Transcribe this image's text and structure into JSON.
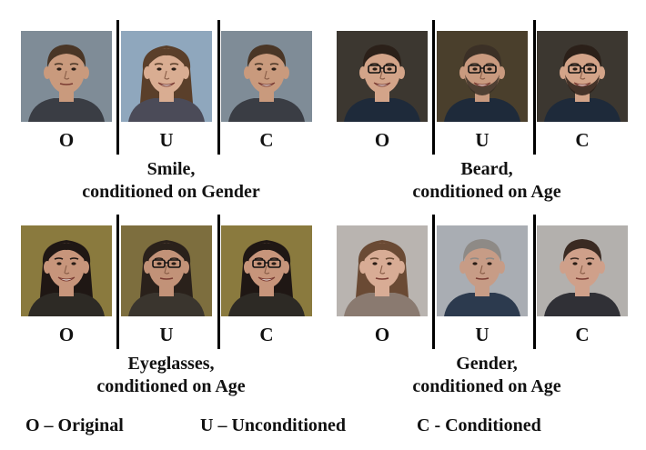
{
  "panels": [
    {
      "caption_line1": "Smile,",
      "caption_line2": "conditioned on Gender",
      "labels": [
        "O",
        "U",
        "C"
      ],
      "photos": [
        {
          "bg": "#7f8c97",
          "skin": "#c99a7d",
          "hair": "#4a3626",
          "shirt": "#3a3d44",
          "long_hair": false,
          "glasses": false,
          "beard": false,
          "smile": false
        },
        {
          "bg": "#8fa7bd",
          "skin": "#d9ad92",
          "hair": "#5a3f2a",
          "shirt": "#4b4b58",
          "long_hair": true,
          "glasses": false,
          "beard": false,
          "smile": true
        },
        {
          "bg": "#7f8c97",
          "skin": "#c99a7d",
          "hair": "#4a3626",
          "shirt": "#3a3d44",
          "long_hair": false,
          "glasses": false,
          "beard": false,
          "smile": true
        }
      ]
    },
    {
      "caption_line1": "Beard,",
      "caption_line2": "conditioned on Age",
      "labels": [
        "O",
        "U",
        "C"
      ],
      "photos": [
        {
          "bg": "#3c3730",
          "skin": "#d3a489",
          "hair": "#2b2019",
          "shirt": "#1e2a3a",
          "long_hair": false,
          "glasses": true,
          "beard": false,
          "smile": true
        },
        {
          "bg": "#4a3f2c",
          "skin": "#c99a7f",
          "hair": "#3b3026",
          "shirt": "#1e2a3a",
          "long_hair": false,
          "glasses": true,
          "beard": true,
          "smile": true
        },
        {
          "bg": "#3c3730",
          "skin": "#d3a489",
          "hair": "#2b2019",
          "shirt": "#1e2a3a",
          "long_hair": false,
          "glasses": true,
          "beard": true,
          "smile": true
        }
      ]
    },
    {
      "caption_line1": "Eyeglasses,",
      "caption_line2": "conditioned on Age",
      "labels": [
        "O",
        "U",
        "C"
      ],
      "photos": [
        {
          "bg": "#8a7a3e",
          "skin": "#c7957b",
          "hair": "#1f1714",
          "shirt": "#2d2a25",
          "long_hair": true,
          "glasses": false,
          "beard": false,
          "smile": true
        },
        {
          "bg": "#7d6e3e",
          "skin": "#c29278",
          "hair": "#2a211b",
          "shirt": "#3a352e",
          "long_hair": true,
          "glasses": true,
          "beard": false,
          "smile": false
        },
        {
          "bg": "#8a7a3e",
          "skin": "#c7957b",
          "hair": "#1f1714",
          "shirt": "#2d2a25",
          "long_hair": true,
          "glasses": true,
          "beard": false,
          "smile": true
        }
      ]
    },
    {
      "caption_line1": "Gender,",
      "caption_line2": "conditioned on Age",
      "labels": [
        "O",
        "U",
        "C"
      ],
      "photos": [
        {
          "bg": "#b9b4b0",
          "skin": "#d8ac95",
          "hair": "#6a4a34",
          "shirt": "#8a7a70",
          "long_hair": true,
          "glasses": false,
          "beard": false,
          "smile": false
        },
        {
          "bg": "#a9adb3",
          "skin": "#c79c86",
          "hair": "#8e8a86",
          "shirt": "#2c3a4e",
          "long_hair": false,
          "glasses": false,
          "beard": false,
          "smile": false
        },
        {
          "bg": "#b3b0ad",
          "skin": "#cfa08a",
          "hair": "#3a2a22",
          "shirt": "#303036",
          "long_hair": false,
          "glasses": false,
          "beard": false,
          "smile": false
        }
      ]
    }
  ],
  "legend": {
    "original": "O – Original",
    "unconditioned": "U – Unconditioned",
    "conditioned": "C - Conditioned"
  }
}
